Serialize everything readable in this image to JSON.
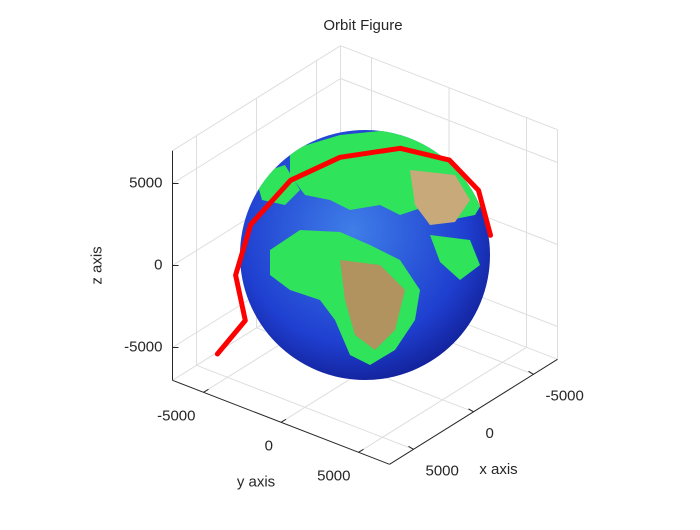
{
  "chart_data": {
    "type": "orbit3d",
    "title": "Orbit Figure",
    "xlabel": "x axis",
    "ylabel": "y axis",
    "zlabel": "z axis",
    "xlim": [
      -7000,
      7000
    ],
    "ylim": [
      -7000,
      7000
    ],
    "zlim": [
      -7000,
      7000
    ],
    "xticks": [
      -5000,
      0,
      5000
    ],
    "yticks": [
      -5000,
      0,
      5000
    ],
    "zticks": [
      -5000,
      0,
      5000
    ],
    "grid": true,
    "series": [
      {
        "color": "#ff0000",
        "x": [
          3000,
          3000,
          2000,
          1000,
          0,
          -500,
          -1000,
          -2000,
          -3000,
          -4000
        ],
        "y": [
          -7200,
          -5400,
          -6800,
          -6600,
          -4800,
          -2000,
          1500,
          3900,
          5000,
          5000
        ],
        "z": [
          -7300,
          -4600,
          -2800,
          -100,
          2800,
          5000,
          6600,
          6300,
          4400,
          1200
        ]
      }
    ]
  }
}
